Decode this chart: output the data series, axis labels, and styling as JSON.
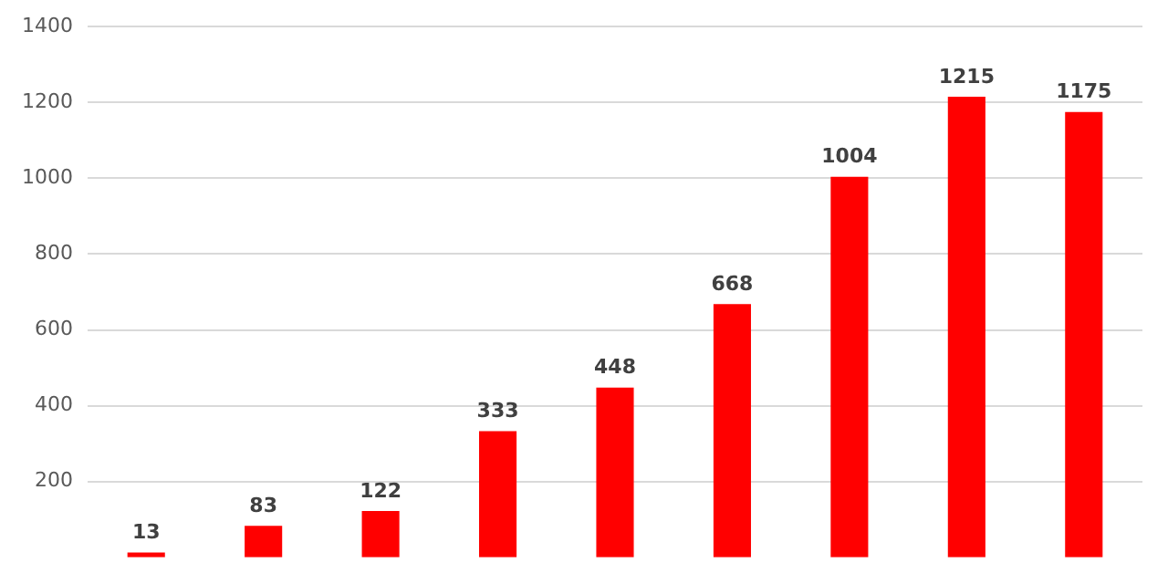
{
  "chart_data": {
    "type": "bar",
    "categories": [
      null,
      null,
      null,
      null,
      null,
      null,
      null,
      null,
      null
    ],
    "values": [
      13,
      83,
      122,
      333,
      448,
      668,
      1004,
      1215,
      1175
    ],
    "color": "#ff0000",
    "ylim": [
      0,
      1400
    ],
    "yticks": [
      200,
      400,
      600,
      800,
      1000,
      1200,
      1400
    ],
    "grid": "y",
    "data_labels": true,
    "legend": false
  }
}
